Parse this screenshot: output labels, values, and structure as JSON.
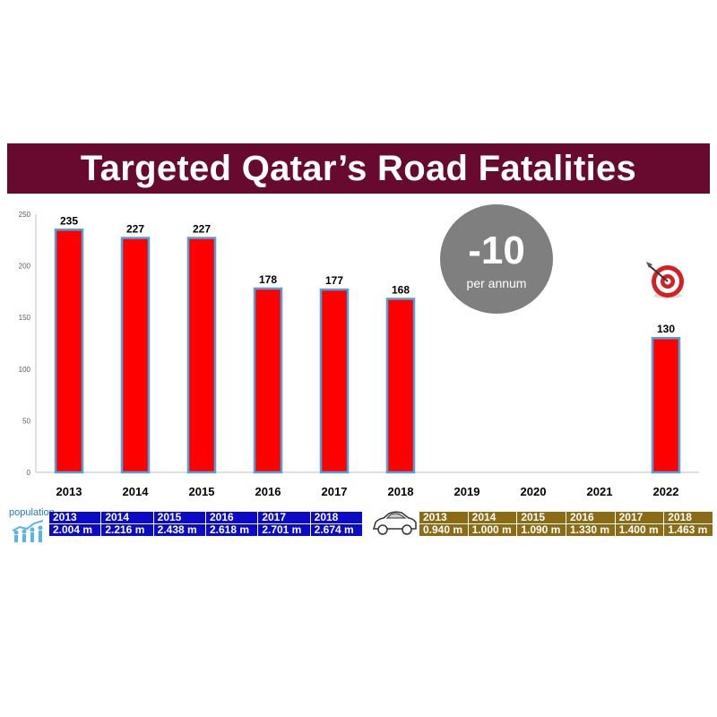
{
  "title": "Targeted Qatar’s Road Fatalities",
  "badge": {
    "value": "-10",
    "caption": "per annum"
  },
  "colors": {
    "title_bg": "#680a30",
    "bar": "#ff0000",
    "bar_border": "#4aa3df",
    "badge": "#7f7f7f",
    "population_table": "#0a0ac8",
    "vehicle_table": "#8b6b14"
  },
  "chart_data": {
    "type": "bar",
    "categories": [
      "2013",
      "2014",
      "2015",
      "2016",
      "2017",
      "2018",
      "2019",
      "2020",
      "2021",
      "2022"
    ],
    "values": [
      235,
      227,
      227,
      178,
      177,
      168,
      null,
      null,
      null,
      130
    ],
    "data_labels": [
      "235",
      "227",
      "227",
      "178",
      "177",
      "168",
      "",
      "",
      "",
      "130"
    ],
    "ylim": [
      0,
      250
    ],
    "yticks": [
      "0",
      "50",
      "100",
      "150",
      "200",
      "250"
    ],
    "title": "",
    "xlabel": "",
    "ylabel": "",
    "grid": false,
    "legend": "none"
  },
  "target_icon": "dartboard-target-icon",
  "population": {
    "label": "population",
    "icon": "population-growth-icon",
    "years": [
      "2013",
      "2014",
      "2015",
      "2016",
      "2017",
      "2018"
    ],
    "values": [
      "2.004 m",
      "2.216 m",
      "2.438 m",
      "2.618 m",
      "2.701 m",
      "2.674 m"
    ]
  },
  "vehicles": {
    "icon": "car-icon",
    "years": [
      "2013",
      "2014",
      "2015",
      "2016",
      "2017",
      "2018"
    ],
    "values": [
      "0.940 m",
      "1.000 m",
      "1.090 m",
      "1.330 m",
      "1.400 m",
      "1.463 m"
    ]
  }
}
